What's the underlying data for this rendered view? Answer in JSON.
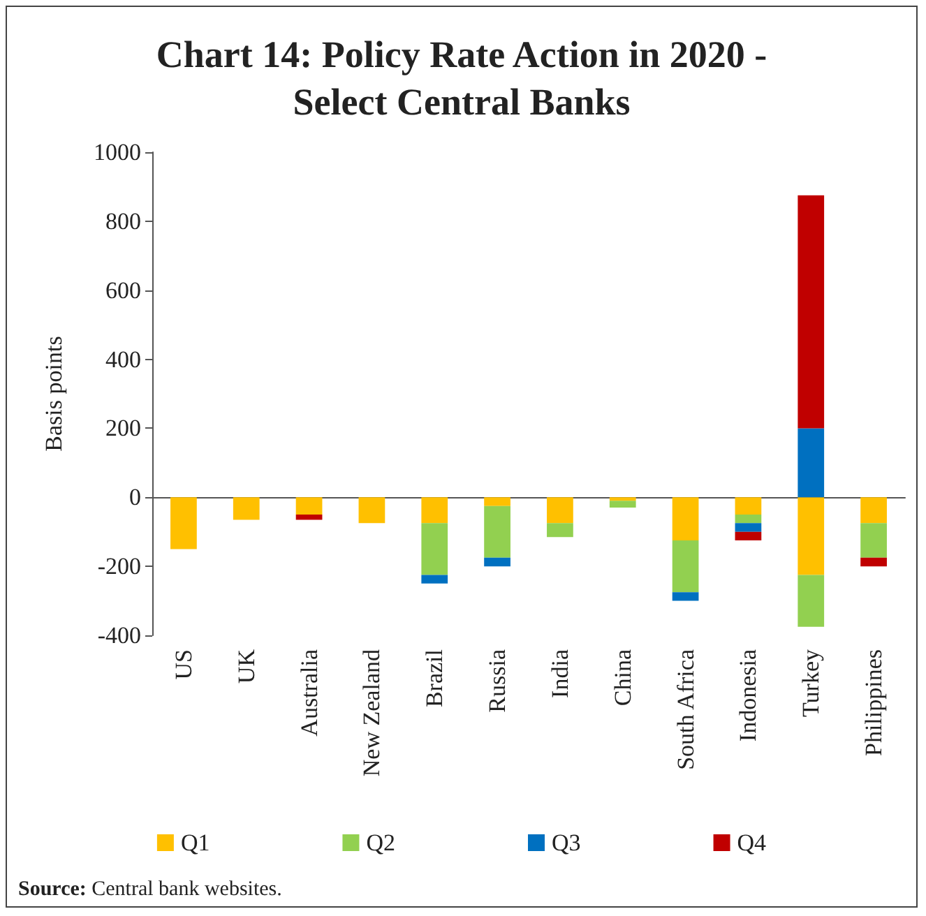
{
  "chart_data": {
    "type": "bar",
    "title": "Chart 14: Policy Rate Action in 2020 -\nSelect Central Banks",
    "ylabel": "Basis points",
    "categories": [
      "US",
      "UK",
      "Australia",
      "New Zealand",
      "Brazil",
      "Russia",
      "India",
      "China",
      "South Africa",
      "Indonesia",
      "Turkey",
      "Philippines"
    ],
    "series": [
      {
        "name": "Q1",
        "color": "#ffc000",
        "values": [
          -150,
          -65,
          -50,
          -75,
          -75,
          -25,
          -75,
          -10,
          -125,
          -50,
          -225,
          -75
        ]
      },
      {
        "name": "Q2",
        "color": "#92d050",
        "values": [
          null,
          null,
          null,
          null,
          -150,
          -150,
          -40,
          -20,
          -150,
          -25,
          -150,
          -100
        ]
      },
      {
        "name": "Q3",
        "color": "#0070c0",
        "values": [
          null,
          null,
          null,
          null,
          -25,
          -25,
          null,
          null,
          -25,
          -25,
          200,
          null
        ]
      },
      {
        "name": "Q4",
        "color": "#c00000",
        "values": [
          null,
          null,
          -15,
          null,
          null,
          null,
          null,
          null,
          null,
          -25,
          675,
          -25
        ]
      }
    ],
    "stacked": true,
    "ylim": [
      -400,
      1000
    ],
    "yticks": [
      -400,
      -200,
      0,
      200,
      400,
      600,
      800,
      1000
    ],
    "legend": "bottom",
    "annotations": [
      "Source: Central bank websites."
    ]
  }
}
